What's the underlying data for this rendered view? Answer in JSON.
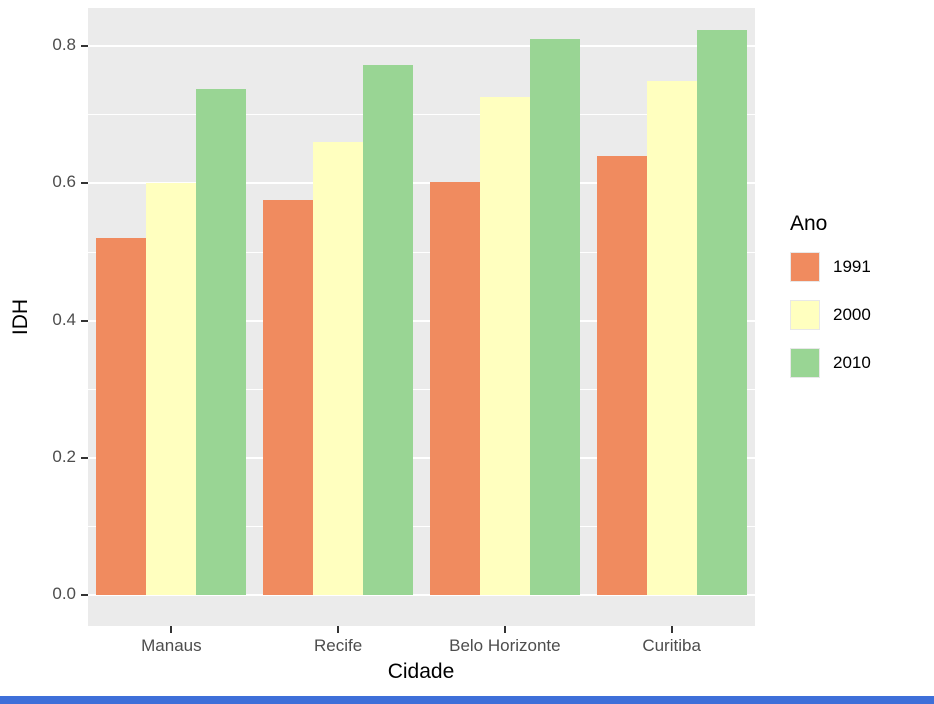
{
  "chart_data": {
    "type": "bar",
    "title": "",
    "xlabel": "Cidade",
    "ylabel": "IDH",
    "categories": [
      "Manaus",
      "Recife",
      "Belo Horizonte",
      "Curitiba"
    ],
    "series": [
      {
        "name": "1991",
        "color": "#F08B5F",
        "values": [
          0.521,
          0.576,
          0.602,
          0.64
        ]
      },
      {
        "name": "2000",
        "color": "#FFFFBF",
        "values": [
          0.601,
          0.66,
          0.726,
          0.75
        ]
      },
      {
        "name": "2010",
        "color": "#99D594",
        "values": [
          0.737,
          0.772,
          0.81,
          0.823
        ]
      }
    ],
    "legend": {
      "title": "Ano",
      "position": "right"
    },
    "y_ticks": [
      0,
      0.2,
      0.4,
      0.6,
      0.8
    ],
    "y_tick_labels": [
      "0.0",
      "0.2",
      "0.4",
      "0.6",
      "0.8"
    ],
    "y_minor_ticks": [
      0.1,
      0.3,
      0.5,
      0.7
    ],
    "ylim": [
      0,
      0.86
    ],
    "grid": true
  },
  "theme": {
    "page_bg": "#FFFFFF",
    "panel_bg": "#EBEBEB",
    "grid_major": "#FFFFFF",
    "grid_minor": "#FFFFFF",
    "tick_color": "#333333",
    "axis_text_color": "#4D4D4D",
    "title_color": "#000000",
    "legend_swatch_border": "#E8E8E8",
    "bottom_bar_color": "#3E6FD9"
  }
}
